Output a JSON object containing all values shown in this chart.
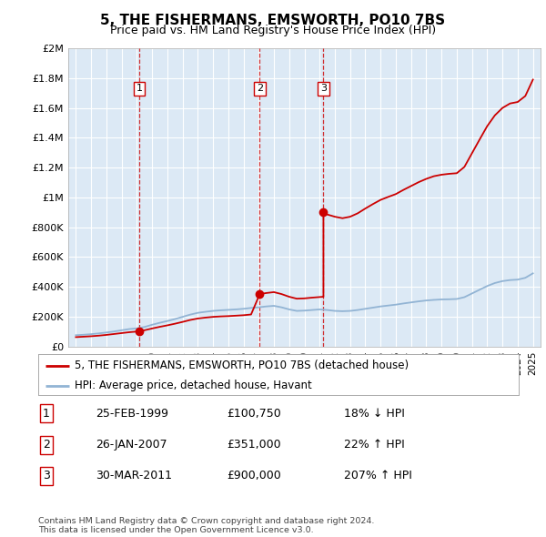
{
  "title": "5, THE FISHERMANS, EMSWORTH, PO10 7BS",
  "subtitle": "Price paid vs. HM Land Registry's House Price Index (HPI)",
  "plot_bg_color": "#dce9f5",
  "hpi_color": "#92b4d4",
  "price_color": "#cc0000",
  "ylim": [
    0,
    2000000
  ],
  "yticks": [
    0,
    200000,
    400000,
    600000,
    800000,
    1000000,
    1200000,
    1400000,
    1600000,
    1800000,
    2000000
  ],
  "ytick_labels": [
    "£0",
    "£200K",
    "£400K",
    "£600K",
    "£800K",
    "£1M",
    "£1.2M",
    "£1.4M",
    "£1.6M",
    "£1.8M",
    "£2M"
  ],
  "sale_years": [
    1999.15,
    2007.07,
    2011.25
  ],
  "sale_prices": [
    100750,
    351000,
    900000
  ],
  "sale_labels": [
    "1",
    "2",
    "3"
  ],
  "legend_label_price": "5, THE FISHERMANS, EMSWORTH, PO10 7BS (detached house)",
  "legend_label_hpi": "HPI: Average price, detached house, Havant",
  "table_data": [
    [
      "1",
      "25-FEB-1999",
      "£100,750",
      "18% ↓ HPI"
    ],
    [
      "2",
      "26-JAN-2007",
      "£351,000",
      "22% ↑ HPI"
    ],
    [
      "3",
      "30-MAR-2011",
      "£900,000",
      "207% ↑ HPI"
    ]
  ],
  "footnote": "Contains HM Land Registry data © Crown copyright and database right 2024.\nThis data is licensed under the Open Government Licence v3.0.",
  "hpi_x": [
    1995.0,
    1995.5,
    1996.0,
    1996.5,
    1997.0,
    1997.5,
    1998.0,
    1998.5,
    1999.0,
    1999.5,
    2000.0,
    2000.5,
    2001.0,
    2001.5,
    2002.0,
    2002.5,
    2003.0,
    2003.5,
    2004.0,
    2004.5,
    2005.0,
    2005.5,
    2006.0,
    2006.5,
    2007.0,
    2007.5,
    2008.0,
    2008.5,
    2009.0,
    2009.5,
    2010.0,
    2010.5,
    2011.0,
    2011.5,
    2012.0,
    2012.5,
    2013.0,
    2013.5,
    2014.0,
    2014.5,
    2015.0,
    2015.5,
    2016.0,
    2016.5,
    2017.0,
    2017.5,
    2018.0,
    2018.5,
    2019.0,
    2019.5,
    2020.0,
    2020.5,
    2021.0,
    2021.5,
    2022.0,
    2022.5,
    2023.0,
    2023.5,
    2024.0,
    2024.5,
    2025.0
  ],
  "hpi_y": [
    75000,
    78000,
    82000,
    87000,
    93000,
    100000,
    108000,
    116000,
    121000,
    130000,
    145000,
    158000,
    170000,
    183000,
    198000,
    213000,
    225000,
    232000,
    238000,
    242000,
    245000,
    248000,
    252000,
    258000,
    262000,
    268000,
    272000,
    262000,
    248000,
    238000,
    240000,
    244000,
    248000,
    244000,
    238000,
    236000,
    238000,
    244000,
    252000,
    260000,
    268000,
    274000,
    280000,
    288000,
    295000,
    302000,
    308000,
    312000,
    315000,
    316000,
    318000,
    330000,
    355000,
    380000,
    405000,
    425000,
    438000,
    445000,
    448000,
    460000,
    490000
  ],
  "red_x": [
    1995.0,
    1995.5,
    1996.0,
    1996.5,
    1997.0,
    1997.5,
    1998.0,
    1998.5,
    1999.15,
    1999.5,
    2000.0,
    2000.5,
    2001.0,
    2001.5,
    2002.0,
    2002.5,
    2003.0,
    2003.5,
    2004.0,
    2004.5,
    2005.0,
    2005.5,
    2006.0,
    2006.5,
    2007.07,
    2007.07,
    2007.5,
    2008.0,
    2008.5,
    2009.0,
    2009.5,
    2010.0,
    2010.5,
    2011.25,
    2011.25,
    2011.5,
    2012.0,
    2012.5,
    2013.0,
    2013.5,
    2014.0,
    2014.5,
    2015.0,
    2015.5,
    2016.0,
    2016.5,
    2017.0,
    2017.5,
    2018.0,
    2018.5,
    2019.0,
    2019.5,
    2020.0,
    2020.5,
    2021.0,
    2021.5,
    2022.0,
    2022.5,
    2023.0,
    2023.5,
    2024.0,
    2024.5,
    2025.0
  ],
  "red_y": [
    62000,
    65000,
    68000,
    72000,
    77000,
    83000,
    89000,
    95000,
    100750,
    108000,
    120000,
    131000,
    141000,
    152000,
    164000,
    177000,
    187000,
    193000,
    198000,
    201000,
    203000,
    206000,
    209000,
    214000,
    351000,
    351000,
    358000,
    364000,
    351000,
    333000,
    320000,
    322000,
    327000,
    333000,
    900000,
    885000,
    870000,
    860000,
    870000,
    893000,
    925000,
    955000,
    983000,
    1003000,
    1022000,
    1050000,
    1076000,
    1102000,
    1124000,
    1142000,
    1152000,
    1158000,
    1162000,
    1204000,
    1296000,
    1388000,
    1478000,
    1550000,
    1600000,
    1630000,
    1640000,
    1680000,
    1790000
  ]
}
